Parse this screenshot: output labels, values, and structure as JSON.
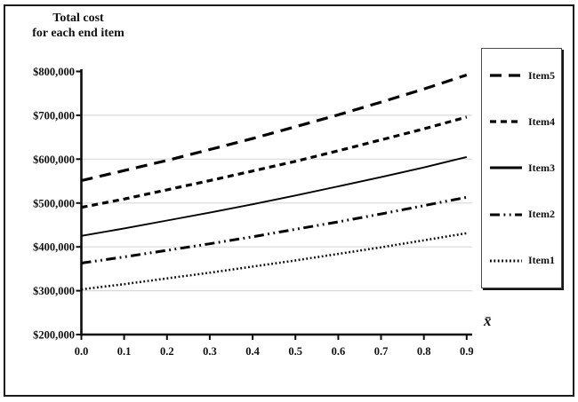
{
  "chart_data": {
    "type": "line",
    "title_lines": [
      "Total cost",
      "for each end item"
    ],
    "xlabel": "x̄",
    "legend_position": "right",
    "grid": true,
    "xlim": [
      0.0,
      0.9
    ],
    "ylim": [
      200000,
      800000
    ],
    "x": [
      0.0,
      0.1,
      0.2,
      0.3,
      0.4,
      0.5,
      0.6,
      0.7,
      0.8,
      0.9
    ],
    "xtick_labels": [
      "0.0",
      "0.1",
      "0.2",
      "0.3",
      "0.4",
      "0.5",
      "0.6",
      "0.7",
      "0.8",
      "0.9"
    ],
    "ytick_values": [
      800000,
      700000,
      600000,
      500000,
      400000,
      300000,
      200000
    ],
    "ytick_labels": [
      "$800,000",
      "$700,000",
      "$600,000",
      "$500,000",
      "$400,000",
      "$300,000",
      "$200,000"
    ],
    "grid_values": [
      300000,
      400000,
      500000,
      600000,
      700000
    ],
    "axis_color": "#0d0d0d",
    "grid_color": "#d9d9d9",
    "series": [
      {
        "name": "Item5",
        "line_style": "long-dash",
        "dash": "13 8",
        "width": 3.2,
        "color": "#000000",
        "values": [
          551000,
          574000,
          597000,
          622000,
          647000,
          674000,
          701000,
          730000,
          760000,
          792000
        ]
      },
      {
        "name": "Item4",
        "line_style": "dash",
        "dash": "7 5",
        "width": 3.2,
        "color": "#000000",
        "values": [
          490000,
          509000,
          530000,
          551000,
          573000,
          595000,
          619000,
          644000,
          669000,
          696000
        ]
      },
      {
        "name": "Item3",
        "line_style": "solid",
        "dash": "",
        "width": 1.9,
        "color": "#000000",
        "values": [
          425000,
          442000,
          460000,
          478000,
          497000,
          517000,
          538000,
          559000,
          581000,
          605000
        ]
      },
      {
        "name": "Item2",
        "line_style": "dash-dot-dot",
        "dash": "11 4.5 1.8 4.5 1.8 4.5",
        "width": 3.0,
        "color": "#000000",
        "values": [
          363000,
          377000,
          392000,
          407000,
          423000,
          440000,
          457000,
          475000,
          494000,
          513000
        ]
      },
      {
        "name": "Item1",
        "line_style": "dotted",
        "dash": "1.8 2.6",
        "width": 2.5,
        "color": "#000000",
        "values": [
          303000,
          315000,
          328000,
          341000,
          355000,
          369000,
          384000,
          399000,
          415000,
          431000
        ]
      }
    ]
  }
}
